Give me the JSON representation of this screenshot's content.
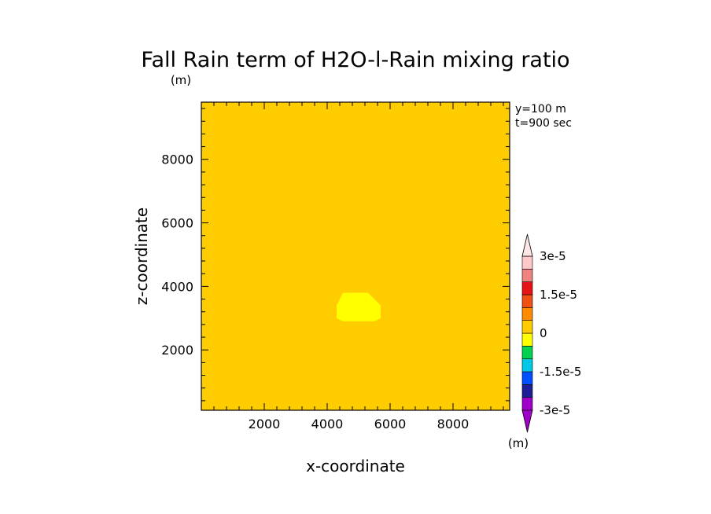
{
  "chart_data": {
    "type": "heatmap",
    "title": "Fall Rain term of H2O-l-Rain mixing ratio",
    "y_unit": "(m)",
    "info_lines": [
      "y=100 m",
      "t=900 sec"
    ],
    "xlabel": "x-coordinate",
    "ylabel": "z-coordinate",
    "xlim": [
      0,
      9800
    ],
    "ylim": [
      100,
      9800
    ],
    "x_ticks": [
      2000,
      4000,
      6000,
      8000
    ],
    "y_ticks": [
      2000,
      4000,
      6000,
      8000
    ],
    "background_value_band": "0 to 3.75e-6",
    "background_color": "#ffcc00",
    "anomaly": {
      "band": "-3.75e-6 to 0",
      "color": "#ffff00",
      "polygon": [
        [
          4500,
          3800
        ],
        [
          5300,
          3800
        ],
        [
          5700,
          3400
        ],
        [
          5700,
          3000
        ],
        [
          5500,
          2900
        ],
        [
          4500,
          2900
        ],
        [
          4300,
          3000
        ],
        [
          4300,
          3400
        ]
      ]
    },
    "colorbar": {
      "unit": "(m)",
      "labels": [
        {
          "text": "3e-5",
          "value": 3e-05
        },
        {
          "text": "1.5e-5",
          "value": 1.5e-05
        },
        {
          "text": "0",
          "value": 0
        },
        {
          "text": "-1.5e-5",
          "value": -1.5e-05
        },
        {
          "text": "-3e-5",
          "value": -3e-05
        }
      ],
      "min": -3e-05,
      "max": 3e-05,
      "colors_bottom_to_top": [
        "#a000c8",
        "#1e1e96",
        "#0050ff",
        "#00c8e6",
        "#00d250",
        "#ffff00",
        "#ffcc00",
        "#ff8c00",
        "#f05014",
        "#e61414",
        "#f08282",
        "#ffc8c8"
      ],
      "under_color": "#a000c8",
      "over_color": "#ffe6e6"
    }
  }
}
